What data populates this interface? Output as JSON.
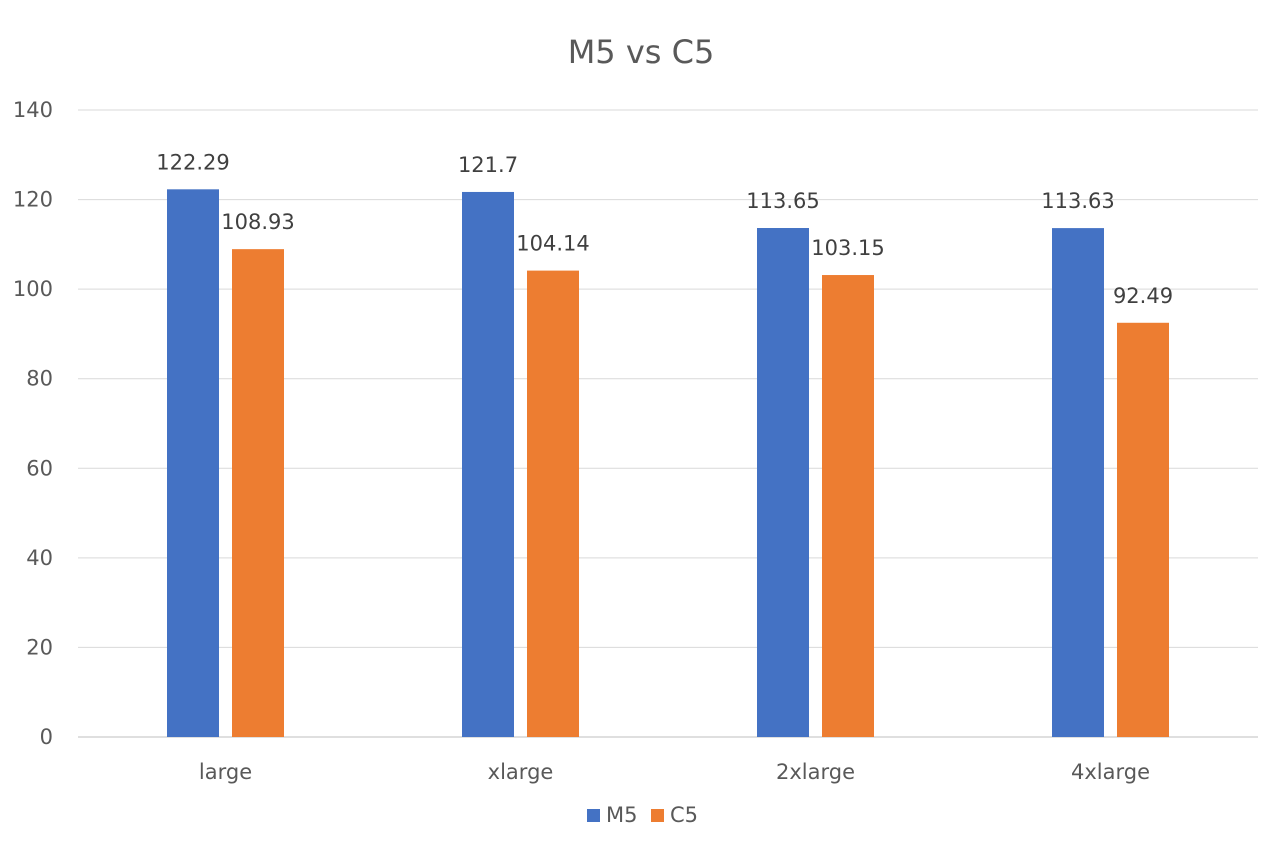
{
  "chart_data": {
    "type": "bar",
    "title": "M5 vs C5",
    "xlabel": "",
    "ylabel": "",
    "categories": [
      "large",
      "xlarge",
      "2xlarge",
      "4xlarge"
    ],
    "series": [
      {
        "name": "M5",
        "color": "#4472c4",
        "values": [
          122.29,
          121.7,
          113.65,
          113.63
        ],
        "labels": [
          "122.29",
          "121.7",
          "113.65",
          "113.63"
        ]
      },
      {
        "name": "C5",
        "color": "#ed7d31",
        "values": [
          108.93,
          104.14,
          103.15,
          92.49
        ],
        "labels": [
          "108.93",
          "104.14",
          "103.15",
          "92.49"
        ]
      }
    ],
    "ylim": [
      0,
      140
    ],
    "yticks": [
      0,
      20,
      40,
      60,
      80,
      100,
      120,
      140
    ],
    "grid": true,
    "legend_position": "bottom"
  }
}
